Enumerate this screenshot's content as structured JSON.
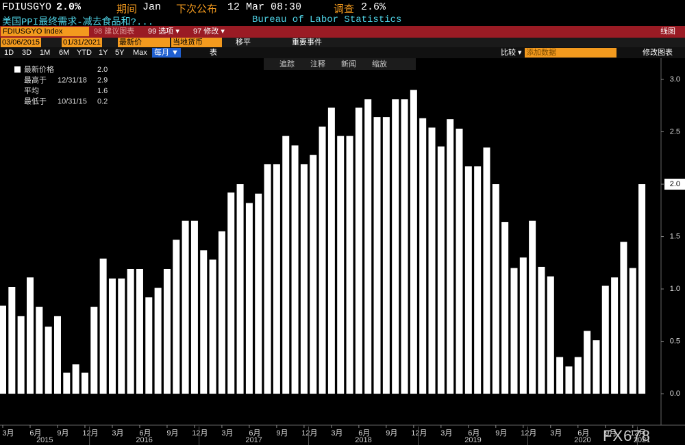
{
  "header": {
    "ticker": "FDIUSGYO",
    "last": "2.0%",
    "period_label": "期间",
    "period": "Jan",
    "next_label": "下次公布",
    "next": "12 Mar 08:30",
    "survey_label": "调查",
    "survey": "2.6%",
    "description": "美国PPI最终需求-减去食品和?...",
    "source": "Bureau of Labor Statistics"
  },
  "toolbar": {
    "security": "FDIUSGYO Index",
    "suggest": "98 建议图表",
    "options": "99 选项 ▾",
    "edit": "97 修改 ▾",
    "chart_kind": "线图",
    "start_date": "03/06/2015",
    "end_date": "01/31/2021",
    "field": "最新价",
    "currency": "当地货币",
    "smooth": "移平",
    "events": "重要事件",
    "ranges": [
      "1D",
      "3D",
      "1M",
      "6M",
      "YTD",
      "1Y",
      "5Y",
      "Max"
    ],
    "frequency": "每月 ▼",
    "table": "表",
    "compare": "比较 ▾",
    "add_data": "添加数据",
    "edit_chart": "修改图表",
    "tools": [
      "追踪",
      "注释",
      "新闻",
      "缩放"
    ]
  },
  "chart_data": {
    "type": "bar",
    "color": "#ffffff",
    "values": [
      0.84,
      1.02,
      0.74,
      1.11,
      0.83,
      0.64,
      0.74,
      0.2,
      0.28,
      0.2,
      0.83,
      1.29,
      1.1,
      1.1,
      1.19,
      1.19,
      0.92,
      1.01,
      1.19,
      1.47,
      1.65,
      1.65,
      1.37,
      1.28,
      1.55,
      1.92,
      2.0,
      1.82,
      1.91,
      2.19,
      2.19,
      2.46,
      2.37,
      2.19,
      2.28,
      2.55,
      2.73,
      2.46,
      2.46,
      2.73,
      2.81,
      2.64,
      2.64,
      2.81,
      2.81,
      2.9,
      2.63,
      2.54,
      2.36,
      2.62,
      2.53,
      2.17,
      2.17,
      2.35,
      2.0,
      1.64,
      1.2,
      1.3,
      1.65,
      1.21,
      1.12,
      0.35,
      0.26,
      0.35,
      0.6,
      0.51,
      1.03,
      1.11,
      1.45,
      1.2,
      2.0
    ],
    "month_labels": [
      "3月",
      "6月",
      "9月",
      "12月",
      "3月",
      "6月",
      "9月",
      "12月",
      "3月",
      "6月",
      "9月",
      "12月",
      "3月",
      "6月",
      "9月",
      "12月",
      "3月",
      "6月",
      "9月",
      "12月",
      "3月",
      "6月",
      "9月",
      "12月"
    ],
    "years": [
      "2015",
      "2016",
      "2017",
      "2018",
      "2019",
      "2020",
      "2021"
    ],
    "ylim": [
      -0.3,
      3.2
    ],
    "yticks": [
      {
        "value": 0,
        "label": "0.0"
      },
      0.5,
      {
        "value": 1,
        "label": "1.0"
      },
      1.5,
      {
        "value": 2,
        "label": "2.0"
      },
      2.5,
      {
        "value": 3,
        "label": "3.0"
      }
    ],
    "stats": [
      {
        "name": "最新价格",
        "date": "",
        "value": "2.0"
      },
      {
        "name": "最高于",
        "date": "12/31/18",
        "value": "2.9"
      },
      {
        "name": "平均",
        "date": "",
        "value": "1.6"
      },
      {
        "name": "最低于",
        "date": "10/31/15",
        "value": "0.2"
      }
    ],
    "watermark": "FX678"
  }
}
